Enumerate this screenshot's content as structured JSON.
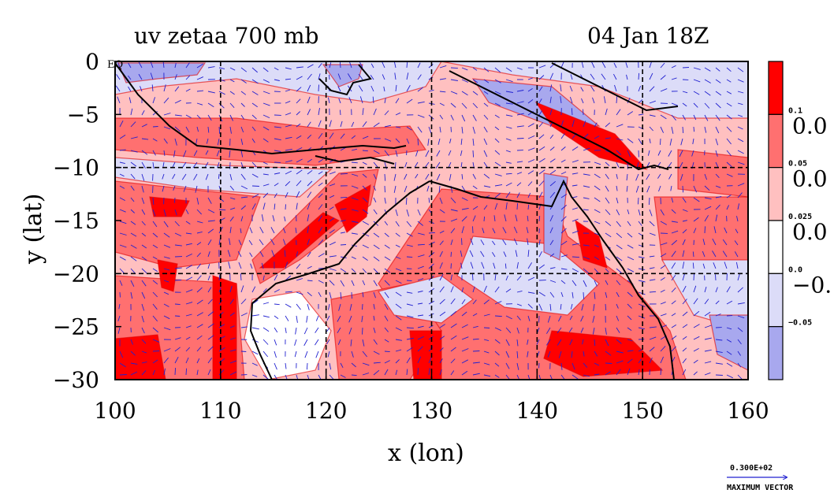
{
  "chart_data": {
    "type": "heatmap",
    "title_left": "uv zetaa 700 mb",
    "title_right": "04 Jan 18Z",
    "xlabel": "x (lon)",
    "ylabel": "y (lat)",
    "xlim": [
      100,
      160
    ],
    "ylim": [
      -30,
      0
    ],
    "x_ticks": [
      "100",
      "110",
      "120",
      "130",
      "140",
      "150",
      "160"
    ],
    "y_ticks": [
      "0",
      "−5",
      "−10",
      "−15",
      "−20",
      "−25",
      "−30"
    ],
    "y_tick_values": [
      0,
      -5,
      -10,
      -15,
      -20,
      -25,
      -30
    ],
    "x_tick_values": [
      100,
      110,
      120,
      130,
      140,
      150,
      160
    ],
    "gridlines_x": [
      110,
      120,
      130,
      140,
      150
    ],
    "gridlines_y": [
      -10,
      -20
    ],
    "eq_label": "EQ",
    "grid": true,
    "colorbar": {
      "colors": [
        "#ff0000",
        "#ff7070",
        "#ffc0c0",
        "#ffffff",
        "#dcdcf8",
        "#a8a8ee"
      ],
      "small_labels": [
        "0.1",
        "0.05",
        "0.025",
        "0.0",
        "−0.05"
      ],
      "big_labels": [
        "0.0",
        "0.0",
        "0.0",
        "−0."
      ]
    },
    "legend_vector": {
      "value": "0.300E+02",
      "label": "MAXIMUM VECTOR"
    },
    "colors": {
      "vector": "#2020d0",
      "coast": "#000000",
      "grid": "#000000"
    }
  }
}
